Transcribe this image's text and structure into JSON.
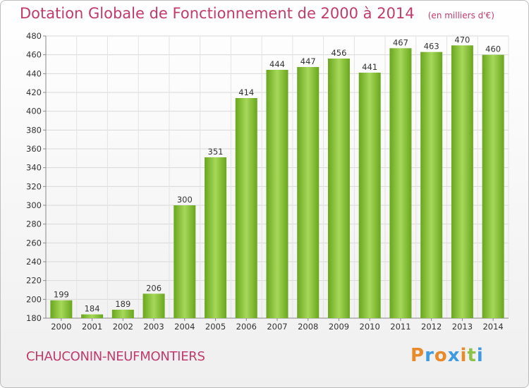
{
  "chart_data": {
    "type": "bar",
    "title": "Dotation Globale de Fonctionnement de 2000 à 2014",
    "subtitle": "(en milliers d'€)",
    "categories": [
      "2000",
      "2001",
      "2002",
      "2003",
      "2004",
      "2005",
      "2006",
      "2007",
      "2008",
      "2009",
      "2010",
      "2011",
      "2012",
      "2013",
      "2014"
    ],
    "values": [
      199,
      184,
      189,
      206,
      300,
      351,
      414,
      444,
      447,
      456,
      441,
      467,
      463,
      470,
      460
    ],
    "ylim": [
      180,
      480
    ],
    "yticks": [
      180,
      200,
      220,
      240,
      260,
      280,
      300,
      320,
      340,
      360,
      380,
      400,
      420,
      440,
      460,
      480
    ],
    "grid": true,
    "bar_color_light": "#a6d85a",
    "bar_color_dark": "#6aa61e"
  },
  "footer": {
    "commune": "CHAUCONIN-NEUFMONTIERS",
    "logo_text": "Proxiti",
    "logo_colors": [
      "#e8892a",
      "#3f9be0",
      "#e8892a",
      "#3f9be0",
      "#e8892a",
      "#8bc34a",
      "#3f9be0"
    ]
  }
}
